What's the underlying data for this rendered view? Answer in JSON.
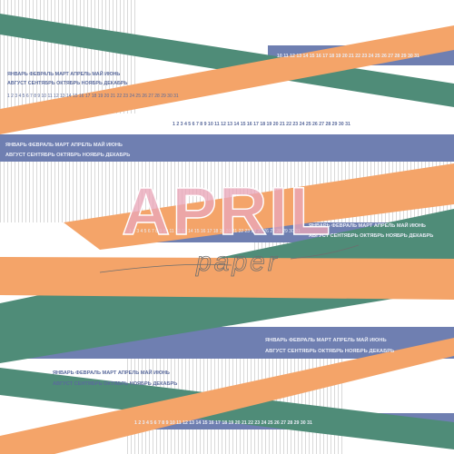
{
  "design": {
    "title": "APRIL",
    "subtitle": "paper",
    "months_row1": [
      "ЯНВАРЬ",
      "ФЕВРАЛЬ",
      "МАРТ",
      "АПРЕЛЬ",
      "МАЙ",
      "ИЮНЬ"
    ],
    "months_row2": [
      "АВГУСТ",
      "СЕНТЯБРЬ",
      "ОКТЯБРЬ",
      "НОЯБРЬ",
      "ДЕКАБРЬ"
    ],
    "days": "1 2 3 4 5 6 7 8 9 10 11 12 13 14 15 16 17 18 19 20 21 22 23 24 25 26 27 28 29 30 31",
    "days_partial_top": "10 11 12 13 14 15 16 17 18 19 20 21 22 23 24 25 26 27 28 29 30 31",
    "colors": {
      "background": "#ffffff",
      "purple": "#6f7fb1",
      "green": "#4f8c78",
      "orange": "#f4a469",
      "stripe": "#d9d9d9",
      "label_light": "#e9ecf6",
      "label_dark": "#5a6a9c",
      "title_fill": "#e9a7b8",
      "subtitle_ink": "#6e6e6e"
    }
  }
}
